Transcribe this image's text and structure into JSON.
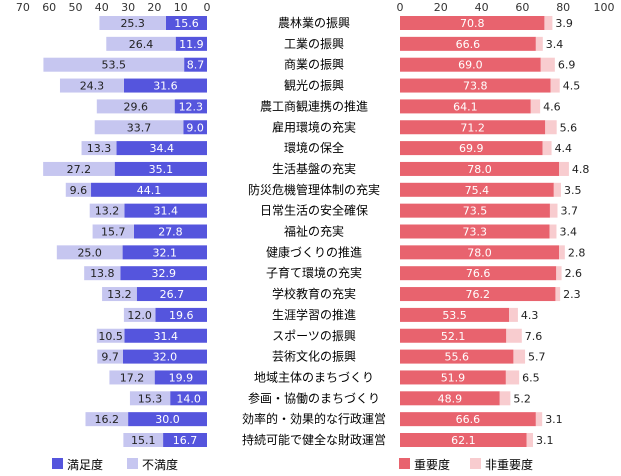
{
  "chart_data": [
    {
      "type": "bar",
      "orientation": "horizontal",
      "stacked": true,
      "direction": "leftward",
      "xlim": [
        70,
        0
      ],
      "xticks": [
        "70",
        "60",
        "50",
        "40",
        "30",
        "20",
        "10",
        "0"
      ],
      "categories": [
        "農林業の振興",
        "工業の振興",
        "商業の振興",
        "観光の振興",
        "農工商観連携の推進",
        "雇用環境の充実",
        "環境の保全",
        "生活基盤の充実",
        "防災危機管理体制の充実",
        "日常生活の安全確保",
        "福祉の充実",
        "健康づくりの推進",
        "子育て環境の充実",
        "学校教育の充実",
        "生涯学習の推進",
        "スポーツの振興",
        "芸術文化の振興",
        "地域主体のまちづくり",
        "参画・協働のまちづくり",
        "効率的・効果的な行政運営",
        "持続可能で健全な財政運営"
      ],
      "series": [
        {
          "name": "満足度",
          "color": "#5555dd",
          "values": [
            15.6,
            11.9,
            8.7,
            31.6,
            12.3,
            9.0,
            34.4,
            35.1,
            44.1,
            31.4,
            27.8,
            32.1,
            32.9,
            26.7,
            19.6,
            31.4,
            32.0,
            19.9,
            14.0,
            30.0,
            16.7
          ],
          "labels": [
            "15.6",
            "11.9",
            "8.7",
            "31.6",
            "12.3",
            "9.0",
            "34.4",
            "35.1",
            "44.1",
            "31.4",
            "27.8",
            "32.1",
            "32.9",
            "26.7",
            "19.6",
            "31.4",
            "32.0",
            "19.9",
            "14.0",
            "30.0",
            "16.7"
          ]
        },
        {
          "name": "不満度",
          "color": "#c6c6f0",
          "values": [
            25.3,
            26.4,
            53.5,
            24.3,
            29.6,
            33.7,
            13.3,
            27.2,
            9.6,
            13.2,
            15.7,
            25.0,
            13.8,
            13.2,
            12.0,
            10.5,
            9.7,
            17.2,
            15.3,
            16.2,
            15.1
          ],
          "labels": [
            "25.3",
            "26.4",
            "53.5",
            "24.3",
            "29.6",
            "33.7",
            "13.3",
            "27.2",
            "9.6",
            "13.2",
            "15.7",
            "25.0",
            "13.8",
            "13.2",
            "12.0",
            "10.5",
            "9.7",
            "17.2",
            "15.3",
            "16.2",
            "15.1"
          ]
        }
      ],
      "legend_position": "bottom-left"
    },
    {
      "type": "bar",
      "orientation": "horizontal",
      "stacked": true,
      "direction": "rightward",
      "xlim": [
        0,
        100
      ],
      "xticks": [
        "0",
        "20",
        "40",
        "60",
        "80",
        "100"
      ],
      "series": [
        {
          "name": "重要度",
          "color": "#e8636e",
          "values": [
            70.8,
            66.6,
            69.0,
            73.8,
            64.1,
            71.2,
            69.9,
            78.0,
            75.4,
            73.5,
            73.3,
            78.0,
            76.6,
            76.2,
            53.5,
            52.1,
            55.6,
            51.9,
            48.9,
            66.6,
            62.1
          ],
          "labels": [
            "70.8",
            "66.6",
            "69.0",
            "73.8",
            "64.1",
            "71.2",
            "69.9",
            "78.0",
            "75.4",
            "73.5",
            "73.3",
            "78.0",
            "76.6",
            "76.2",
            "53.5",
            "52.1",
            "55.6",
            "51.9",
            "48.9",
            "66.6",
            "62.1"
          ]
        },
        {
          "name": "非重要度",
          "color": "#f8cccf",
          "values": [
            3.9,
            3.4,
            6.9,
            4.5,
            4.6,
            5.6,
            4.4,
            4.8,
            3.5,
            3.7,
            3.4,
            2.8,
            2.6,
            2.3,
            4.3,
            7.6,
            5.7,
            6.5,
            5.2,
            3.1,
            3.1
          ],
          "labels": [
            "3.9",
            "3.4",
            "6.9",
            "4.5",
            "4.6",
            "5.6",
            "4.4",
            "4.8",
            "3.5",
            "3.7",
            "3.4",
            "2.8",
            "2.6",
            "2.3",
            "4.3",
            "7.6",
            "5.7",
            "6.5",
            "5.2",
            "3.1",
            "3.1"
          ]
        }
      ],
      "legend_position": "bottom-right"
    }
  ]
}
